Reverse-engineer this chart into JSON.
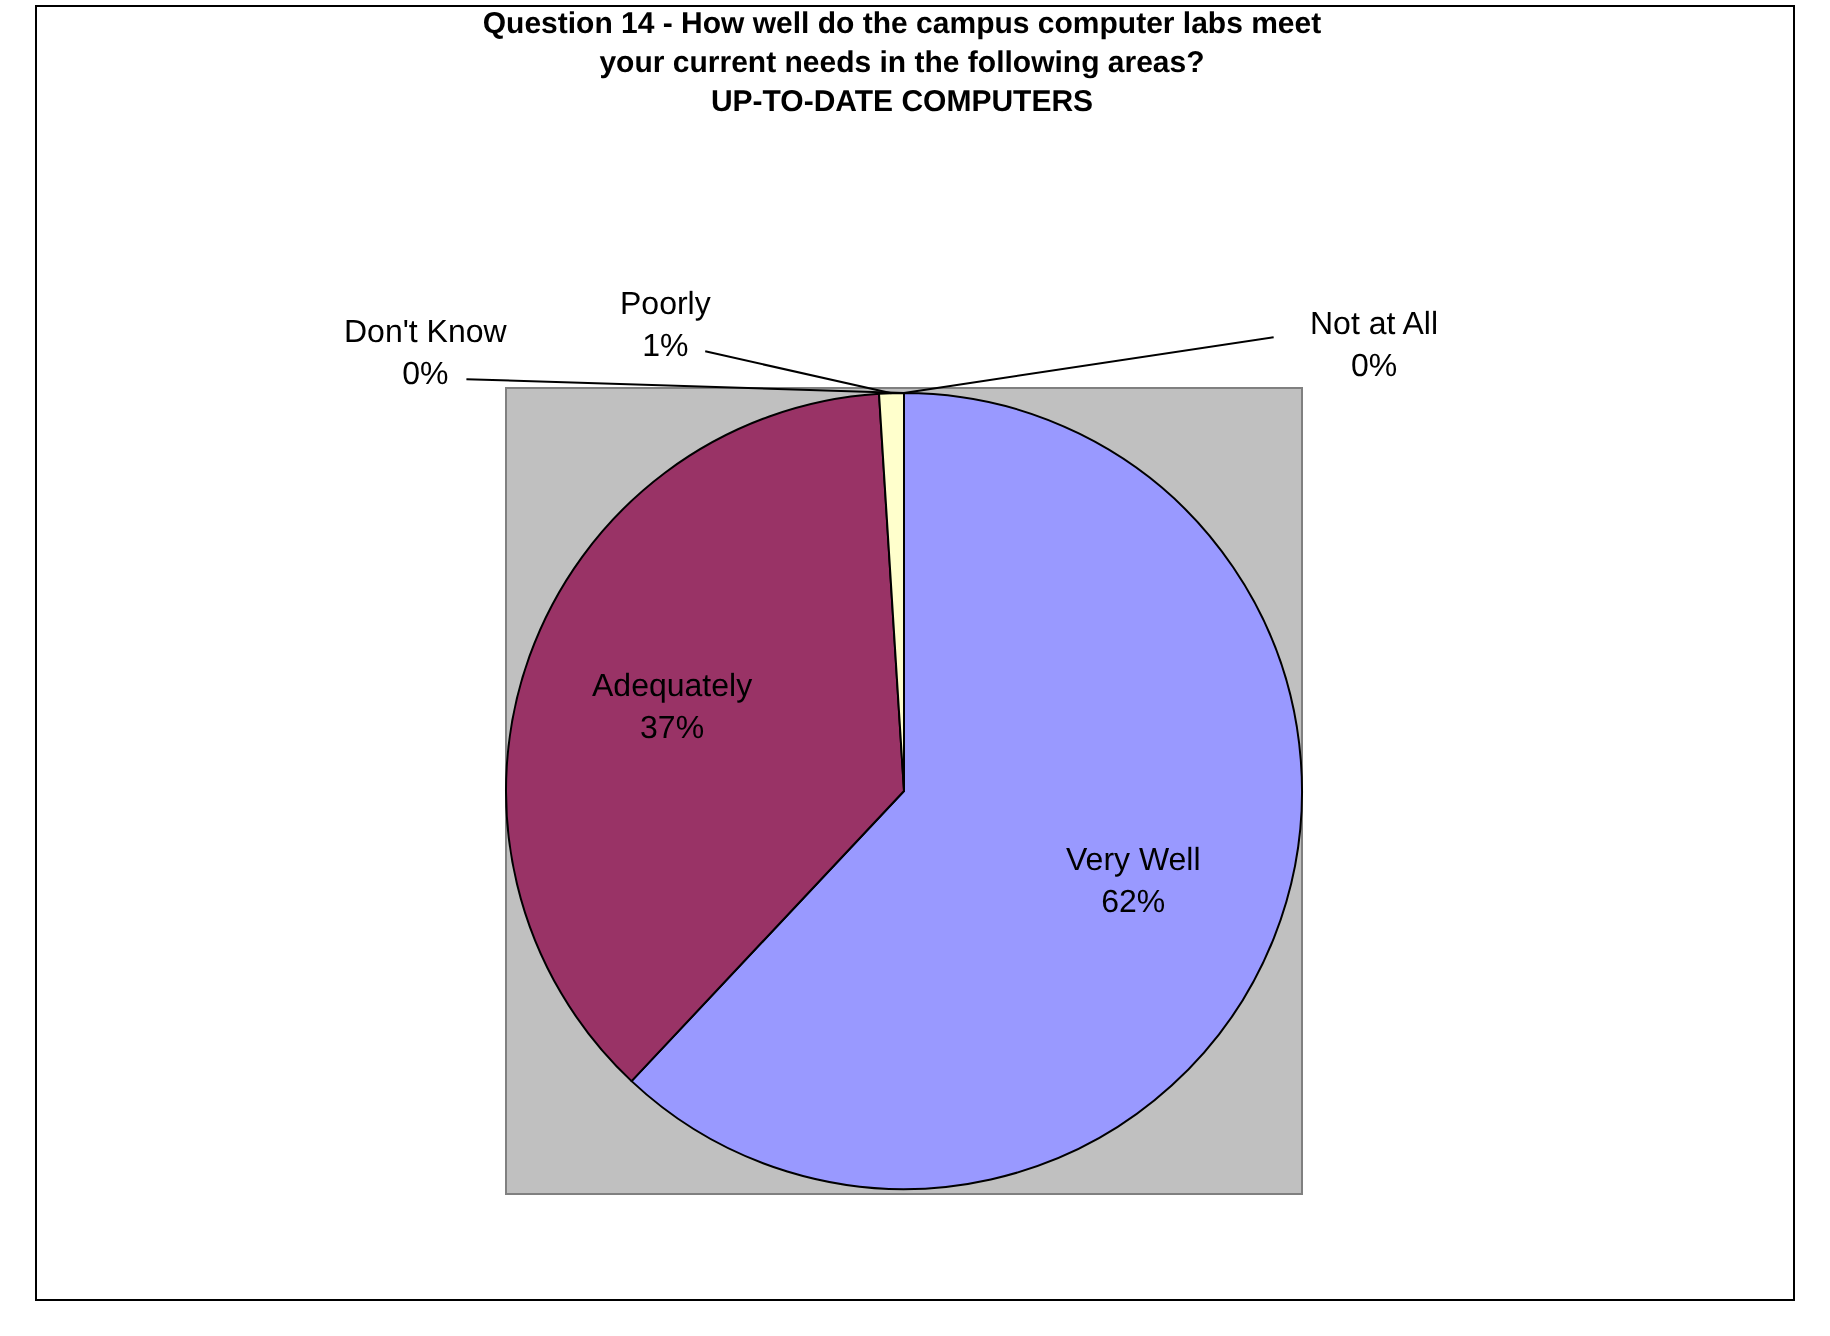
{
  "chart_data": {
    "type": "pie",
    "title": "Question 14 - How well do the campus computer labs meet your current needs in the following areas?\nUP-TO-DATE COMPUTERS",
    "categories": [
      "Very Well",
      "Adequately",
      "Poorly",
      "Don't Know",
      "Not at All"
    ],
    "values": [
      62,
      37,
      1,
      0,
      0
    ],
    "value_labels": [
      "62%",
      "37%",
      "1%",
      "0%",
      "0%"
    ],
    "colors": [
      "#9999ff",
      "#993366",
      "#ffffcc",
      "#ccffff",
      "#660066"
    ],
    "legend": false
  }
}
